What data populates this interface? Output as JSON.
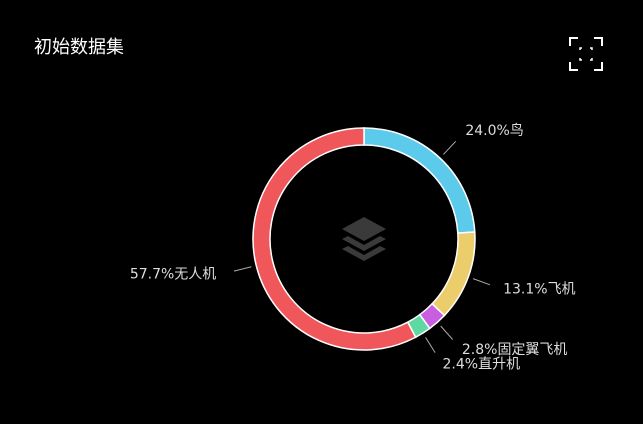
{
  "chart_data": {
    "type": "pie",
    "title": "初始数据集",
    "categories": [
      "鸟",
      "飞机",
      "固定翼飞机",
      "直升机",
      "无人机"
    ],
    "values": [
      24.0,
      13.1,
      2.8,
      2.4,
      57.7
    ],
    "value_labels": [
      "24.0%",
      "13.1%",
      "2.8%",
      "2.4%",
      "57.7%"
    ],
    "colors": [
      "#5ccbeb",
      "#eccd6b",
      "#c75fe0",
      "#5fd9a2",
      "#f0575b"
    ]
  }
}
